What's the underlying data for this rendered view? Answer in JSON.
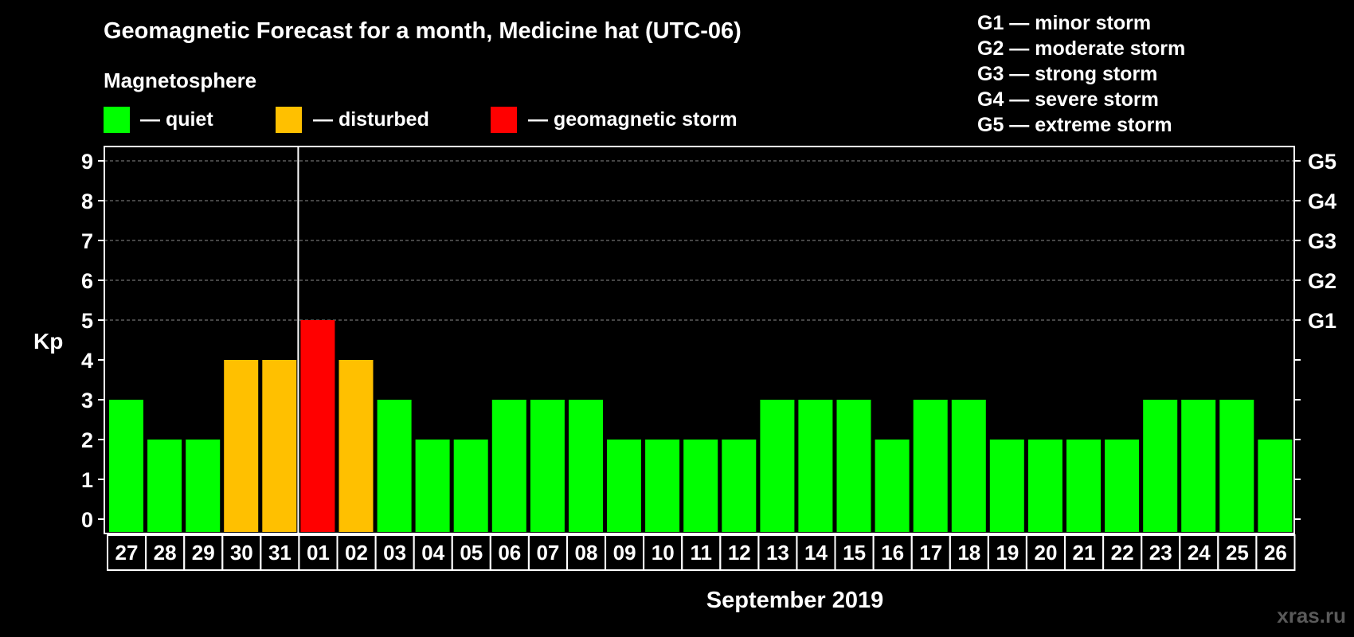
{
  "title": "Geomagnetic Forecast for a month, Medicine hat (UTC-06)",
  "magnetosphere_label": "Magnetosphere",
  "legend": [
    {
      "key": "quiet",
      "label": "— quiet",
      "color": "#00ff00"
    },
    {
      "key": "disturbed",
      "label": "— disturbed",
      "color": "#ffc000"
    },
    {
      "key": "storm",
      "label": "— geomagnetic storm",
      "color": "#ff0000"
    }
  ],
  "storm_scale": [
    {
      "level": "G1",
      "text": "G1 — minor storm"
    },
    {
      "level": "G2",
      "text": "G2 — moderate storm"
    },
    {
      "level": "G3",
      "text": "G3 — strong storm"
    },
    {
      "level": "G4",
      "text": "G4 — severe storm"
    },
    {
      "level": "G5",
      "text": "G5 — extreme storm"
    }
  ],
  "watermark": "xras.ru",
  "colors": {
    "background": "#000000",
    "quiet": "#00ff00",
    "disturbed": "#ffc000",
    "storm": "#ff0000",
    "grid": "#8c8c8c",
    "text": "#ffffff"
  },
  "chart_data": {
    "type": "bar",
    "title": "Geomagnetic Forecast for a month, Medicine hat (UTC-06)",
    "xlabel": "September 2019",
    "ylabel": "Kp",
    "ylim": [
      0,
      9
    ],
    "yticks": [
      "0",
      "1",
      "2",
      "3",
      "4",
      "5",
      "6",
      "7",
      "8",
      "9"
    ],
    "right_axis_labels": [
      {
        "kp": 5,
        "label": "G1"
      },
      {
        "kp": 6,
        "label": "G2"
      },
      {
        "kp": 7,
        "label": "G3"
      },
      {
        "kp": 8,
        "label": "G4"
      },
      {
        "kp": 9,
        "label": "G5"
      }
    ],
    "grid": true,
    "month_divider_after_index": 4,
    "categories": [
      "27",
      "28",
      "29",
      "30",
      "31",
      "01",
      "02",
      "03",
      "04",
      "05",
      "06",
      "07",
      "08",
      "09",
      "10",
      "11",
      "12",
      "13",
      "14",
      "15",
      "16",
      "17",
      "18",
      "19",
      "20",
      "21",
      "22",
      "23",
      "24",
      "25",
      "26"
    ],
    "values": [
      3,
      2,
      2,
      4,
      4,
      5,
      4,
      3,
      2,
      2,
      3,
      3,
      3,
      2,
      2,
      2,
      2,
      3,
      3,
      3,
      2,
      3,
      3,
      2,
      2,
      2,
      2,
      3,
      3,
      3,
      2
    ],
    "status": [
      "quiet",
      "quiet",
      "quiet",
      "disturbed",
      "disturbed",
      "storm",
      "disturbed",
      "quiet",
      "quiet",
      "quiet",
      "quiet",
      "quiet",
      "quiet",
      "quiet",
      "quiet",
      "quiet",
      "quiet",
      "quiet",
      "quiet",
      "quiet",
      "quiet",
      "quiet",
      "quiet",
      "quiet",
      "quiet",
      "quiet",
      "quiet",
      "quiet",
      "quiet",
      "quiet",
      "quiet"
    ]
  }
}
